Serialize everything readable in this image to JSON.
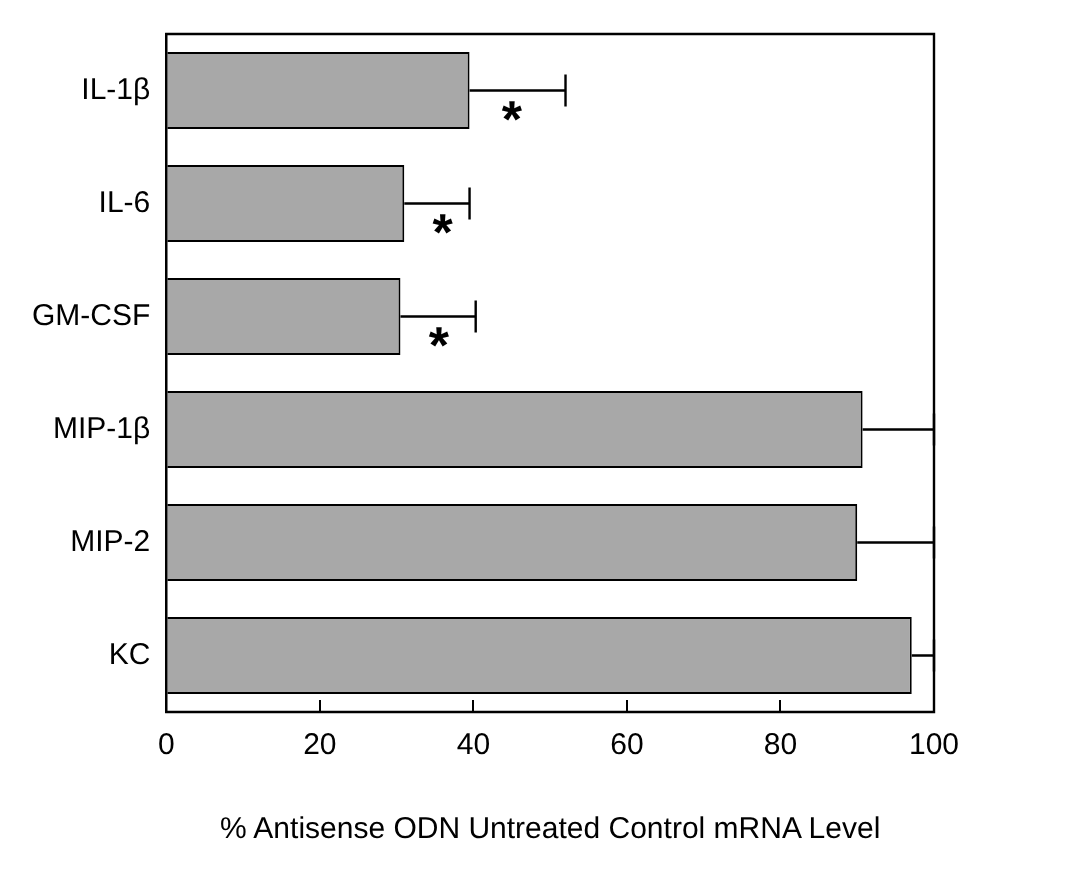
{
  "chart_data": {
    "type": "bar",
    "orientation": "horizontal",
    "xlabel": "% Antisense ODN Untreated Control mRNA Level",
    "categories": [
      "IL-1β",
      "IL-6",
      "GM-CSF",
      "MIP-1β",
      "MIP-2",
      "KC"
    ],
    "values": [
      39.5,
      31,
      30.5,
      90.7,
      90,
      97.1
    ],
    "errors": [
      [
        39.5,
        52
      ],
      [
        31,
        39.5
      ],
      [
        30.5,
        40.3
      ],
      [
        90.7,
        100
      ],
      [
        90,
        100
      ],
      [
        97.1,
        100
      ]
    ],
    "color": "#a8a8a8",
    "xlim": [
      0,
      100
    ],
    "xticks": [
      0,
      20,
      40,
      60,
      80,
      100
    ],
    "grid": false,
    "legend": false,
    "annotations": [
      {
        "text": "*",
        "x": 45,
        "y": "IL-1β"
      },
      {
        "text": "*",
        "x": 36,
        "y": "IL-6"
      },
      {
        "text": "*",
        "x": 35.5,
        "y": "GM-CSF"
      }
    ]
  }
}
